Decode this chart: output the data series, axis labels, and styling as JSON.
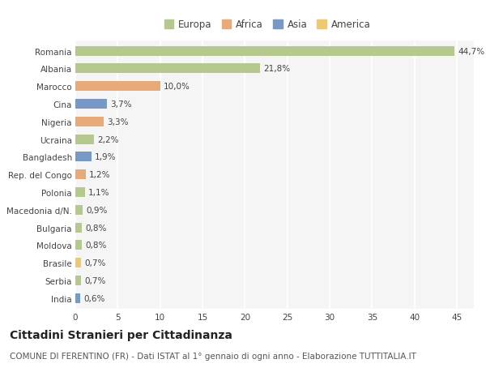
{
  "categories": [
    "Romania",
    "Albania",
    "Marocco",
    "Cina",
    "Nigeria",
    "Ucraina",
    "Bangladesh",
    "Rep. del Congo",
    "Polonia",
    "Macedonia d/N.",
    "Bulgaria",
    "Moldova",
    "Brasile",
    "Serbia",
    "India"
  ],
  "values": [
    44.7,
    21.8,
    10.0,
    3.7,
    3.3,
    2.2,
    1.9,
    1.2,
    1.1,
    0.9,
    0.8,
    0.8,
    0.7,
    0.7,
    0.6
  ],
  "labels": [
    "44,7%",
    "21,8%",
    "10,0%",
    "3,7%",
    "3,3%",
    "2,2%",
    "1,9%",
    "1,2%",
    "1,1%",
    "0,9%",
    "0,8%",
    "0,8%",
    "0,7%",
    "0,7%",
    "0,6%"
  ],
  "colors": [
    "#b5c98e",
    "#b5c98e",
    "#e8aa78",
    "#7898c5",
    "#e8aa78",
    "#b5c98e",
    "#7898c5",
    "#e8aa78",
    "#b5c98e",
    "#b5c98e",
    "#b5c98e",
    "#b5c98e",
    "#f0c96e",
    "#b5c98e",
    "#7898c5"
  ],
  "legend_labels": [
    "Europa",
    "Africa",
    "Asia",
    "America"
  ],
  "legend_colors": [
    "#b5c98e",
    "#e8aa78",
    "#7898c5",
    "#f0c96e"
  ],
  "xlim": [
    0,
    47
  ],
  "xticks": [
    0,
    5,
    10,
    15,
    20,
    25,
    30,
    35,
    40,
    45
  ],
  "title": "Cittadini Stranieri per Cittadinanza",
  "subtitle": "COMUNE DI FERENTINO (FR) - Dati ISTAT al 1° gennaio di ogni anno - Elaborazione TUTTITALIA.IT",
  "bg_color": "#ffffff",
  "plot_bg_color": "#f5f5f5",
  "grid_color": "#ffffff",
  "bar_height": 0.55,
  "title_fontsize": 10,
  "subtitle_fontsize": 7.5,
  "label_fontsize": 7.5,
  "tick_fontsize": 7.5,
  "legend_fontsize": 8.5
}
